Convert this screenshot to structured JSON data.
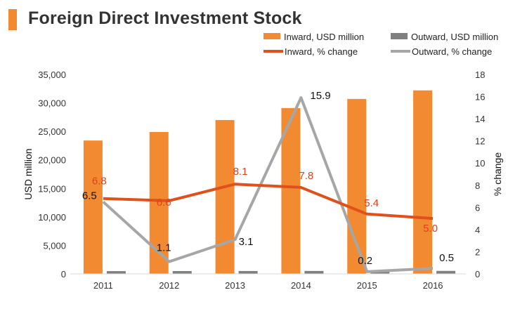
{
  "chart_data": {
    "type": "bar+line",
    "title": "Foreign Direct Investment Stock",
    "categories": [
      "2011",
      "2012",
      "2013",
      "2014",
      "2015",
      "2016"
    ],
    "bar_series": [
      {
        "name": "Inward, USD million",
        "color": "#f28a32",
        "values": [
          23400,
          24900,
          27000,
          29100,
          30700,
          32200
        ]
      },
      {
        "name": "Outward, USD million",
        "color": "#7f7f7f",
        "values": [
          480,
          490,
          500,
          510,
          520,
          520
        ]
      }
    ],
    "line_series": [
      {
        "name": "Inward, % change",
        "color": "#e0501a",
        "label_color": "#e0401a",
        "values": [
          6.8,
          6.6,
          8.1,
          7.8,
          5.4,
          5.0
        ],
        "labels": [
          "6.8",
          "6.6",
          "8.1",
          "7.8",
          "5.4",
          "5.0"
        ]
      },
      {
        "name": "Outward, % change",
        "color": "#a6a6a6",
        "label_color": "#111111",
        "values": [
          6.5,
          1.1,
          3.1,
          15.9,
          0.2,
          0.5
        ],
        "labels": [
          "6.5",
          "1.1",
          "3.1",
          "15.9",
          "0.2",
          "0.5"
        ]
      }
    ],
    "y_left": {
      "label": "USD million",
      "min": 0,
      "max": 35000,
      "ticks": [
        "0",
        "5,000",
        "10,000",
        "15,000",
        "20,000",
        "25,000",
        "30,000",
        "35,000"
      ],
      "tick_values": [
        0,
        5000,
        10000,
        15000,
        20000,
        25000,
        30000,
        35000
      ]
    },
    "y_right": {
      "label": "% change",
      "min": 0,
      "max": 18,
      "ticks": [
        "0",
        "2",
        "4",
        "6",
        "8",
        "10",
        "12",
        "14",
        "16",
        "18"
      ],
      "tick_values": [
        0,
        2,
        4,
        6,
        8,
        10,
        12,
        14,
        16,
        18
      ]
    },
    "legend_position": "top-right",
    "grid": false,
    "accent_color": "#f28a32"
  }
}
